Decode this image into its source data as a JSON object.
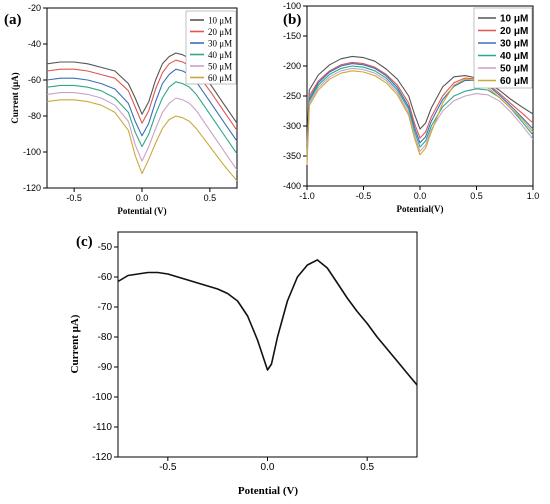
{
  "chart_data": [
    {
      "panel": "(a)",
      "type": "line",
      "xlabel": "Potential (V)",
      "ylabel": "Current (μA)",
      "xlim": [
        -0.7,
        0.7
      ],
      "ylim": [
        -120,
        -20
      ],
      "xticks": [
        -0.5,
        0.0,
        0.5
      ],
      "xtick_labels": [
        "-0.5",
        "0.0",
        "0.5"
      ],
      "yticks": [
        -120,
        -100,
        -80,
        -60,
        -40,
        -20
      ],
      "ytick_labels": [
        "-120",
        "-100",
        "-80",
        "-60",
        "-40",
        "-20"
      ],
      "legend_position": "top-right",
      "grid": false,
      "series": [
        {
          "name": "10 μM",
          "color": "#555555",
          "x": [
            -0.7,
            -0.6,
            -0.5,
            -0.4,
            -0.3,
            -0.2,
            -0.1,
            -0.05,
            0.0,
            0.05,
            0.1,
            0.15,
            0.2,
            0.25,
            0.3,
            0.35,
            0.4,
            0.5,
            0.6,
            0.7
          ],
          "y": [
            -51,
            -50,
            -50,
            -51,
            -53,
            -55,
            -62,
            -70,
            -79,
            -72,
            -60,
            -51,
            -47,
            -45,
            -46,
            -48,
            -52,
            -62,
            -73,
            -84
          ]
        },
        {
          "name": "20 μM",
          "color": "#e05555",
          "x": [
            -0.7,
            -0.6,
            -0.5,
            -0.4,
            -0.3,
            -0.2,
            -0.1,
            -0.05,
            0.0,
            0.05,
            0.1,
            0.15,
            0.2,
            0.25,
            0.3,
            0.35,
            0.4,
            0.5,
            0.6,
            0.7
          ],
          "y": [
            -55,
            -54,
            -54,
            -55,
            -57,
            -59,
            -66,
            -75,
            -84,
            -77,
            -65,
            -56,
            -51,
            -49,
            -50,
            -52,
            -56,
            -66,
            -77,
            -88
          ]
        },
        {
          "name": "30 μM",
          "color": "#3a6fb8",
          "x": [
            -0.7,
            -0.6,
            -0.5,
            -0.4,
            -0.3,
            -0.2,
            -0.1,
            -0.05,
            0.0,
            0.05,
            0.1,
            0.15,
            0.2,
            0.25,
            0.3,
            0.35,
            0.4,
            0.5,
            0.6,
            0.7
          ],
          "y": [
            -60,
            -59,
            -59,
            -60,
            -62,
            -65,
            -73,
            -83,
            -91,
            -84,
            -72,
            -62,
            -57,
            -54,
            -55,
            -57,
            -61,
            -72,
            -83,
            -94
          ]
        },
        {
          "name": "40 μM",
          "color": "#2fa58a",
          "x": [
            -0.7,
            -0.6,
            -0.5,
            -0.4,
            -0.3,
            -0.2,
            -0.1,
            -0.05,
            0.0,
            0.05,
            0.1,
            0.15,
            0.2,
            0.25,
            0.3,
            0.35,
            0.4,
            0.5,
            0.6,
            0.7
          ],
          "y": [
            -64,
            -63,
            -63,
            -64,
            -66,
            -70,
            -78,
            -89,
            -97,
            -90,
            -79,
            -70,
            -64,
            -61,
            -62,
            -64,
            -68,
            -79,
            -90,
            -101
          ]
        },
        {
          "name": "50 μM",
          "color": "#c9a2c9",
          "x": [
            -0.7,
            -0.6,
            -0.5,
            -0.4,
            -0.3,
            -0.2,
            -0.1,
            -0.05,
            0.0,
            0.05,
            0.1,
            0.15,
            0.2,
            0.25,
            0.3,
            0.35,
            0.4,
            0.5,
            0.6,
            0.7
          ],
          "y": [
            -68,
            -67,
            -67,
            -68,
            -70,
            -74,
            -83,
            -96,
            -105,
            -97,
            -87,
            -78,
            -73,
            -70,
            -71,
            -73,
            -77,
            -88,
            -99,
            -110
          ]
        },
        {
          "name": "60 μM",
          "color": "#c9a93c",
          "x": [
            -0.7,
            -0.6,
            -0.5,
            -0.4,
            -0.3,
            -0.2,
            -0.1,
            -0.05,
            0.0,
            0.05,
            0.1,
            0.15,
            0.2,
            0.25,
            0.3,
            0.35,
            0.4,
            0.5,
            0.6,
            0.7
          ],
          "y": [
            -72,
            -71,
            -71,
            -72,
            -74,
            -78,
            -88,
            -102,
            -112,
            -104,
            -95,
            -87,
            -82,
            -80,
            -81,
            -83,
            -87,
            -97,
            -107,
            -116
          ]
        }
      ]
    },
    {
      "panel": "(b)",
      "type": "line",
      "xlabel": "Potential(V)",
      "ylabel": "",
      "xlim": [
        -1.0,
        1.0
      ],
      "ylim": [
        -400,
        -100
      ],
      "xticks": [
        -1.0,
        -0.5,
        0.0,
        0.5,
        1.0
      ],
      "xtick_labels": [
        "-1.0",
        "-0.5",
        "0.0",
        "0.5",
        "1.0"
      ],
      "yticks": [
        -400,
        -350,
        -300,
        -250,
        -200,
        -150,
        -100
      ],
      "ytick_labels": [
        "-400",
        "-350",
        "-300",
        "-250",
        "-200",
        "-150",
        "-100"
      ],
      "legend_position": "top-right",
      "grid": false,
      "series": [
        {
          "name": "10 μM",
          "color": "#555555",
          "x": [
            -1.0,
            -0.98,
            -0.9,
            -0.8,
            -0.7,
            -0.6,
            -0.5,
            -0.4,
            -0.3,
            -0.2,
            -0.1,
            -0.05,
            0.0,
            0.05,
            0.1,
            0.2,
            0.3,
            0.4,
            0.5,
            0.6,
            0.7,
            0.8,
            0.9,
            1.0
          ],
          "y": [
            -330,
            -240,
            -215,
            -198,
            -188,
            -184,
            -186,
            -192,
            -205,
            -222,
            -250,
            -280,
            -305,
            -295,
            -270,
            -235,
            -218,
            -216,
            -220,
            -228,
            -240,
            -255,
            -268,
            -280
          ]
        },
        {
          "name": "20 μM",
          "color": "#e05555",
          "x": [
            -1.0,
            -0.98,
            -0.9,
            -0.8,
            -0.7,
            -0.6,
            -0.5,
            -0.4,
            -0.3,
            -0.2,
            -0.1,
            -0.05,
            0.0,
            0.05,
            0.1,
            0.2,
            0.3,
            0.4,
            0.5,
            0.6,
            0.7,
            0.8,
            0.9,
            1.0
          ],
          "y": [
            -345,
            -250,
            -225,
            -208,
            -198,
            -194,
            -196,
            -202,
            -214,
            -232,
            -262,
            -295,
            -320,
            -310,
            -285,
            -250,
            -228,
            -220,
            -222,
            -230,
            -245,
            -262,
            -278,
            -295
          ]
        },
        {
          "name": "30 μM",
          "color": "#3a6fb8",
          "x": [
            -1.0,
            -0.98,
            -0.9,
            -0.8,
            -0.7,
            -0.6,
            -0.5,
            -0.4,
            -0.3,
            -0.2,
            -0.1,
            -0.05,
            0.0,
            0.05,
            0.1,
            0.2,
            0.3,
            0.4,
            0.5,
            0.6,
            0.7,
            0.8,
            0.9,
            1.0
          ],
          "y": [
            -350,
            -255,
            -228,
            -210,
            -200,
            -196,
            -198,
            -204,
            -216,
            -236,
            -268,
            -302,
            -328,
            -318,
            -292,
            -256,
            -234,
            -224,
            -224,
            -232,
            -248,
            -266,
            -285,
            -305
          ]
        },
        {
          "name": "40 μM",
          "color": "#2fa58a",
          "x": [
            -1.0,
            -0.98,
            -0.9,
            -0.8,
            -0.7,
            -0.6,
            -0.5,
            -0.4,
            -0.3,
            -0.2,
            -0.1,
            -0.05,
            0.0,
            0.05,
            0.1,
            0.2,
            0.3,
            0.4,
            0.5,
            0.6,
            0.7,
            0.8,
            0.9,
            1.0
          ],
          "y": [
            -355,
            -258,
            -232,
            -214,
            -204,
            -200,
            -202,
            -208,
            -220,
            -240,
            -272,
            -308,
            -335,
            -325,
            -300,
            -268,
            -250,
            -242,
            -238,
            -240,
            -252,
            -270,
            -292,
            -315
          ]
        },
        {
          "name": "50 μM",
          "color": "#c9a2c9",
          "x": [
            -1.0,
            -0.98,
            -0.9,
            -0.8,
            -0.7,
            -0.6,
            -0.5,
            -0.4,
            -0.3,
            -0.2,
            -0.1,
            -0.05,
            0.0,
            0.05,
            0.1,
            0.2,
            0.3,
            0.4,
            0.5,
            0.6,
            0.7,
            0.8,
            0.9,
            1.0
          ],
          "y": [
            -360,
            -262,
            -236,
            -218,
            -208,
            -204,
            -206,
            -212,
            -224,
            -244,
            -278,
            -315,
            -342,
            -332,
            -306,
            -275,
            -258,
            -250,
            -246,
            -248,
            -258,
            -276,
            -298,
            -322
          ]
        },
        {
          "name": "60 μM",
          "color": "#c9a93c",
          "x": [
            -1.0,
            -0.98,
            -0.9,
            -0.8,
            -0.7,
            -0.6,
            -0.5,
            -0.4,
            -0.3,
            -0.2,
            -0.1,
            -0.05,
            0.0,
            0.05,
            0.1,
            0.2,
            0.3,
            0.4,
            0.5,
            0.6,
            0.7,
            0.8,
            0.9,
            1.0
          ],
          "y": [
            -365,
            -266,
            -240,
            -222,
            -212,
            -208,
            -210,
            -216,
            -228,
            -248,
            -282,
            -320,
            -348,
            -337,
            -310,
            -262,
            -232,
            -222,
            -224,
            -236,
            -252,
            -270,
            -288,
            -310
          ]
        }
      ]
    },
    {
      "panel": "(c)",
      "type": "line",
      "xlabel": "Potential (V)",
      "ylabel": "Current μA)",
      "xlim": [
        -0.75,
        0.75
      ],
      "ylim": [
        -120,
        -45
      ],
      "xticks": [
        -0.5,
        0.0,
        0.5
      ],
      "xtick_labels": [
        "-0.5",
        "0.0",
        "0.5"
      ],
      "yticks": [
        -120,
        -110,
        -100,
        -90,
        -80,
        -70,
        -60,
        -50
      ],
      "ytick_labels": [
        "-120",
        "-110",
        "-100",
        "-90",
        "-80",
        "-70",
        "-60",
        "-50"
      ],
      "grid": false,
      "series": [
        {
          "color": "#111111",
          "x": [
            -0.75,
            -0.7,
            -0.65,
            -0.6,
            -0.55,
            -0.5,
            -0.45,
            -0.4,
            -0.35,
            -0.3,
            -0.25,
            -0.2,
            -0.15,
            -0.1,
            -0.05,
            -0.02,
            0.0,
            0.02,
            0.05,
            0.1,
            0.15,
            0.2,
            0.25,
            0.3,
            0.35,
            0.4,
            0.45,
            0.5,
            0.55,
            0.6,
            0.65,
            0.7,
            0.75
          ],
          "y": [
            -61.5,
            -59.5,
            -59,
            -58.5,
            -58.5,
            -59,
            -60,
            -61,
            -62,
            -63,
            -64,
            -65.5,
            -68,
            -73,
            -81,
            -87,
            -91,
            -89,
            -80,
            -68,
            -60,
            -56,
            -54.3,
            -57,
            -62,
            -67,
            -71.5,
            -75.5,
            -80,
            -84,
            -88,
            -92,
            -96
          ]
        }
      ]
    }
  ]
}
